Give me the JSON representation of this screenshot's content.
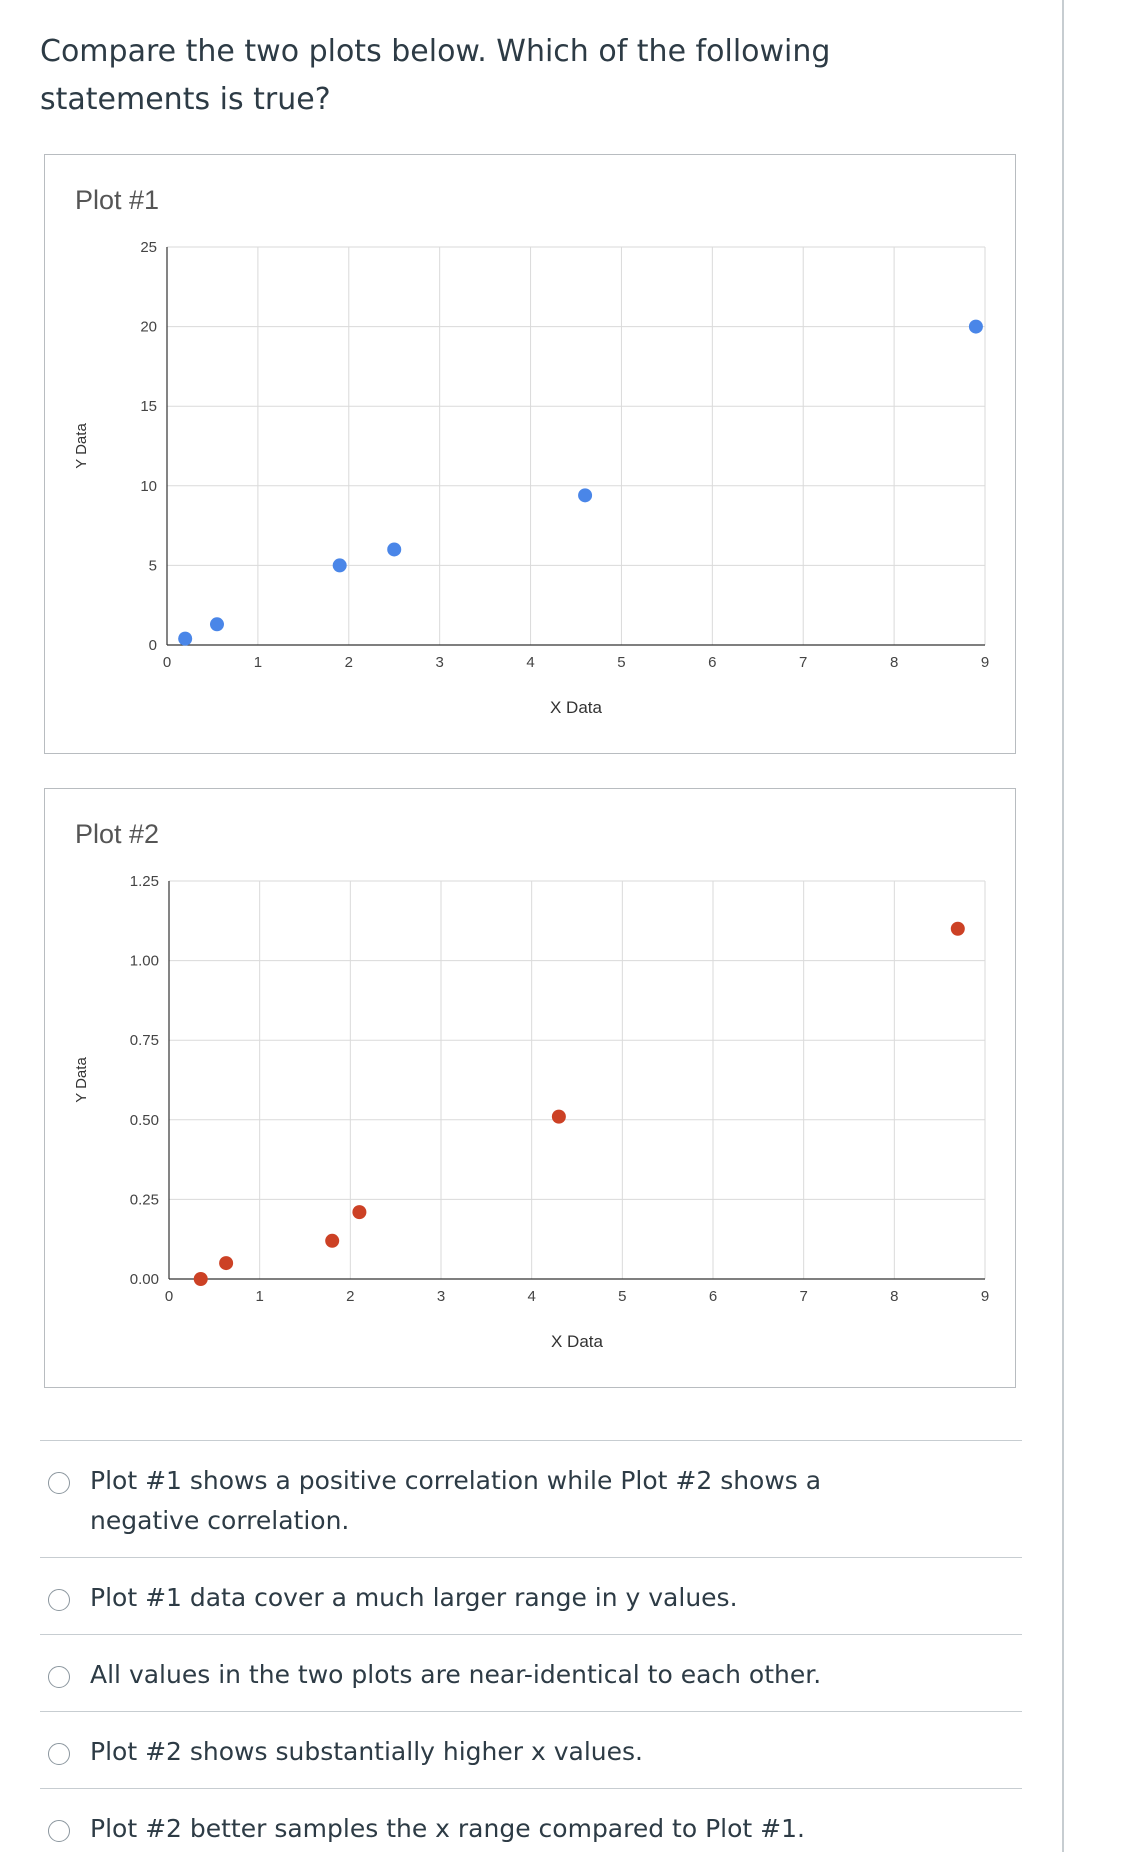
{
  "question": {
    "text": "Compare the two plots below. Which of the following statements is true?"
  },
  "plots": [
    {
      "chart_data": {
        "type": "scatter",
        "title": "Plot #1",
        "xlabel": "X Data",
        "ylabel": "Y Data",
        "xlim": [
          0,
          9
        ],
        "ylim": [
          0,
          25
        ],
        "x_ticks": [
          "0",
          "1",
          "2",
          "3",
          "4",
          "5",
          "6",
          "7",
          "8",
          "9"
        ],
        "y_ticks": [
          "0",
          "5",
          "10",
          "15",
          "20",
          "25"
        ],
        "grid": true,
        "color": "#4a86e8",
        "x": [
          0.2,
          0.55,
          1.9,
          2.5,
          4.6,
          8.9
        ],
        "y": [
          0.4,
          1.3,
          5.0,
          6.0,
          9.4,
          20.0
        ]
      }
    },
    {
      "chart_data": {
        "type": "scatter",
        "title": "Plot #2",
        "xlabel": "X Data",
        "ylabel": "Y Data",
        "xlim": [
          0,
          9
        ],
        "ylim": [
          0,
          1.25
        ],
        "x_ticks": [
          "0",
          "1",
          "2",
          "3",
          "4",
          "5",
          "6",
          "7",
          "8",
          "9"
        ],
        "y_ticks": [
          "0.00",
          "0.25",
          "0.50",
          "0.75",
          "1.00",
          "1.25"
        ],
        "grid": true,
        "color": "#cc4125",
        "x": [
          0.35,
          0.63,
          1.8,
          2.1,
          4.3,
          8.7
        ],
        "y": [
          0.0,
          0.05,
          0.12,
          0.21,
          0.51,
          1.1
        ]
      }
    }
  ],
  "answers": [
    "Plot #1 shows a positive correlation while Plot #2 shows a negative correlation.",
    "Plot #1 data cover a much larger range in y values.",
    "All values in the two plots are near-identical to each other.",
    "Plot #2 shows substantially higher x values.",
    "Plot #2 better samples the x range compared to Plot #1."
  ]
}
